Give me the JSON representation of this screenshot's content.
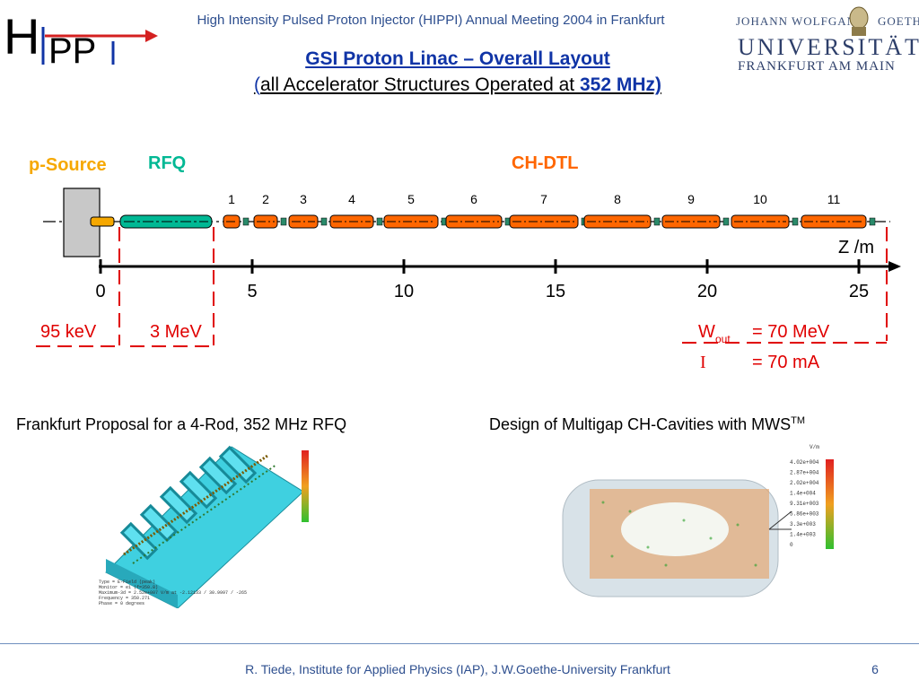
{
  "header": {
    "logo_letters": "HIPPI",
    "meeting": "High Intensity Pulsed Proton Injector (HIPPI) Annual Meeting 2004 in Frankfurt",
    "university": {
      "line1_left": "JOHANN WOLFGANG",
      "line1_right": "GOETHE",
      "name": "UNIVERSITÄT",
      "city": "FRANKFURT AM MAIN"
    }
  },
  "title": "GSI  Proton Linac – Overall Layout",
  "subtitle": {
    "open_paren": "(",
    "text": "all Accelerator Structures Operated at ",
    "frequency": "352 MHz)"
  },
  "layout": {
    "labels": {
      "source": "p-Source",
      "rfq": "RFQ",
      "dtl": "CH-DTL"
    },
    "cavity_numbers": [
      "1",
      "2",
      "3",
      "4",
      "5",
      "6",
      "7",
      "8",
      "9",
      "10",
      "11"
    ],
    "axis": {
      "label": "Z /m",
      "ticks": [
        "0",
        "5",
        "10",
        "15",
        "20",
        "25"
      ],
      "tick_values": [
        0,
        5,
        10,
        15,
        20,
        25
      ]
    },
    "energies": {
      "source": "95 keV",
      "rfq_out": "3 MeV",
      "w_symbol": "W",
      "w_sub": "out",
      "w_value": "= 70 MeV",
      "i_symbol": "I",
      "i_value": "= 70 mA"
    },
    "colors": {
      "source": "#f6a800",
      "rfq": "#00b894",
      "dtl": "#ff6600",
      "energy": "#e00000",
      "title": "#1034a6"
    }
  },
  "captions": {
    "left": "Frankfurt Proposal for a 4-Rod, 352 MHz RFQ",
    "right": "Design of Multigap CH-Cavities with MWS",
    "right_sup": "TM"
  },
  "figures": {
    "rfq_legend": [
      "Type  = E-Field (peak)",
      "Monitor = e1 (f=350.8)",
      "Maximum-3d = 2.52e+007 V/m at -2.12133 / 30.9997 / -265",
      "Frequency = 350.271",
      "Phase = 0 degrees"
    ],
    "ch_unit": "V/m",
    "ch_scale": [
      "4.02e+004",
      "2.87e+004",
      "2.02e+004",
      "1.4e+004",
      "9.31e+003",
      "5.86e+003",
      "3.3e+003",
      "1.4e+003",
      "0"
    ]
  },
  "footer": {
    "text": "R. Tiede, Institute for Applied Physics (IAP), J.W.Goethe-University Frankfurt",
    "page": "6"
  }
}
